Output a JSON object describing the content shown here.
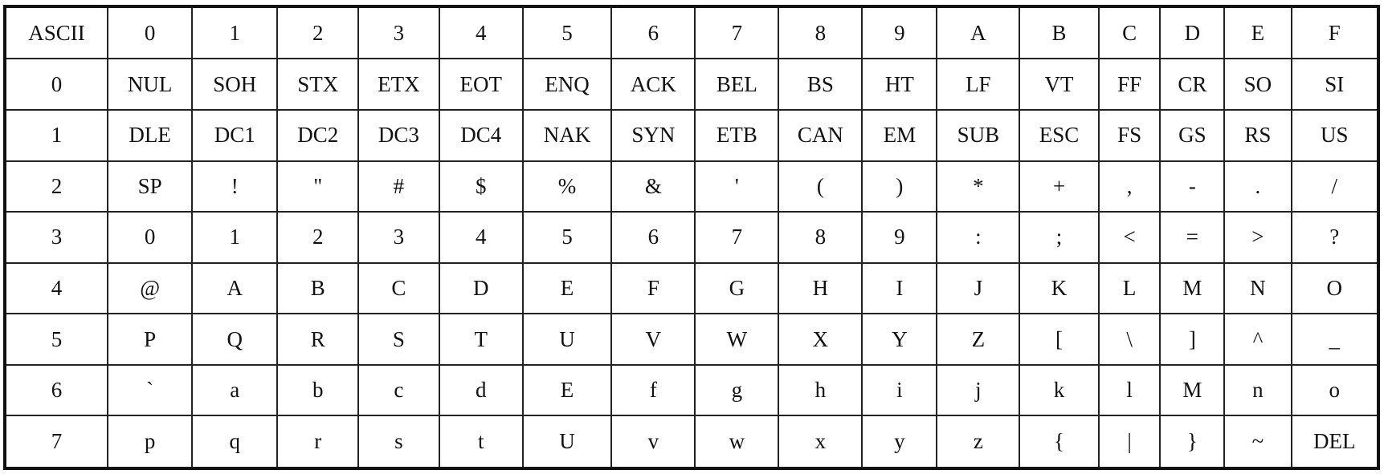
{
  "table": {
    "corner": "ASCII",
    "column_headers": [
      "0",
      "1",
      "2",
      "3",
      "4",
      "5",
      "6",
      "7",
      "8",
      "9",
      "A",
      "B",
      "C",
      "D",
      "E",
      "F"
    ],
    "rows": [
      {
        "label": "0",
        "cells": [
          "NUL",
          "SOH",
          "STX",
          "ETX",
          "EOT",
          "ENQ",
          "ACK",
          "BEL",
          "BS",
          "HT",
          "LF",
          "VT",
          "FF",
          "CR",
          "SO",
          "SI"
        ]
      },
      {
        "label": "1",
        "cells": [
          "DLE",
          "DC1",
          "DC2",
          "DC3",
          "DC4",
          "NAK",
          "SYN",
          "ETB",
          "CAN",
          "EM",
          "SUB",
          "ESC",
          "FS",
          "GS",
          "RS",
          "US"
        ]
      },
      {
        "label": "2",
        "cells": [
          "SP",
          "!",
          "\"",
          "#",
          "$",
          "%",
          "&",
          "'",
          "(",
          ")",
          "*",
          "+",
          ",",
          "-",
          ".",
          "/"
        ]
      },
      {
        "label": "3",
        "cells": [
          "0",
          "1",
          "2",
          "3",
          "4",
          "5",
          "6",
          "7",
          "8",
          "9",
          ":",
          ";",
          "<",
          "=",
          ">",
          "?"
        ]
      },
      {
        "label": "4",
        "cells": [
          "@",
          "A",
          "B",
          "C",
          "D",
          "E",
          "F",
          "G",
          "H",
          "I",
          "J",
          "K",
          "L",
          "M",
          "N",
          "O"
        ]
      },
      {
        "label": "5",
        "cells": [
          "P",
          "Q",
          "R",
          "S",
          "T",
          "U",
          "V",
          "W",
          "X",
          "Y",
          "Z",
          "[",
          "\\",
          "]",
          "^",
          "_"
        ]
      },
      {
        "label": "6",
        "cells": [
          "`",
          "a",
          "b",
          "c",
          "d",
          "E",
          "f",
          "g",
          "h",
          "i",
          "j",
          "k",
          "l",
          "M",
          "n",
          "o"
        ]
      },
      {
        "label": "7",
        "cells": [
          "p",
          "q",
          "r",
          "s",
          "t",
          "U",
          "v",
          "w",
          "x",
          "y",
          "z",
          "{",
          "|",
          "}",
          "~",
          "DEL"
        ]
      }
    ]
  }
}
